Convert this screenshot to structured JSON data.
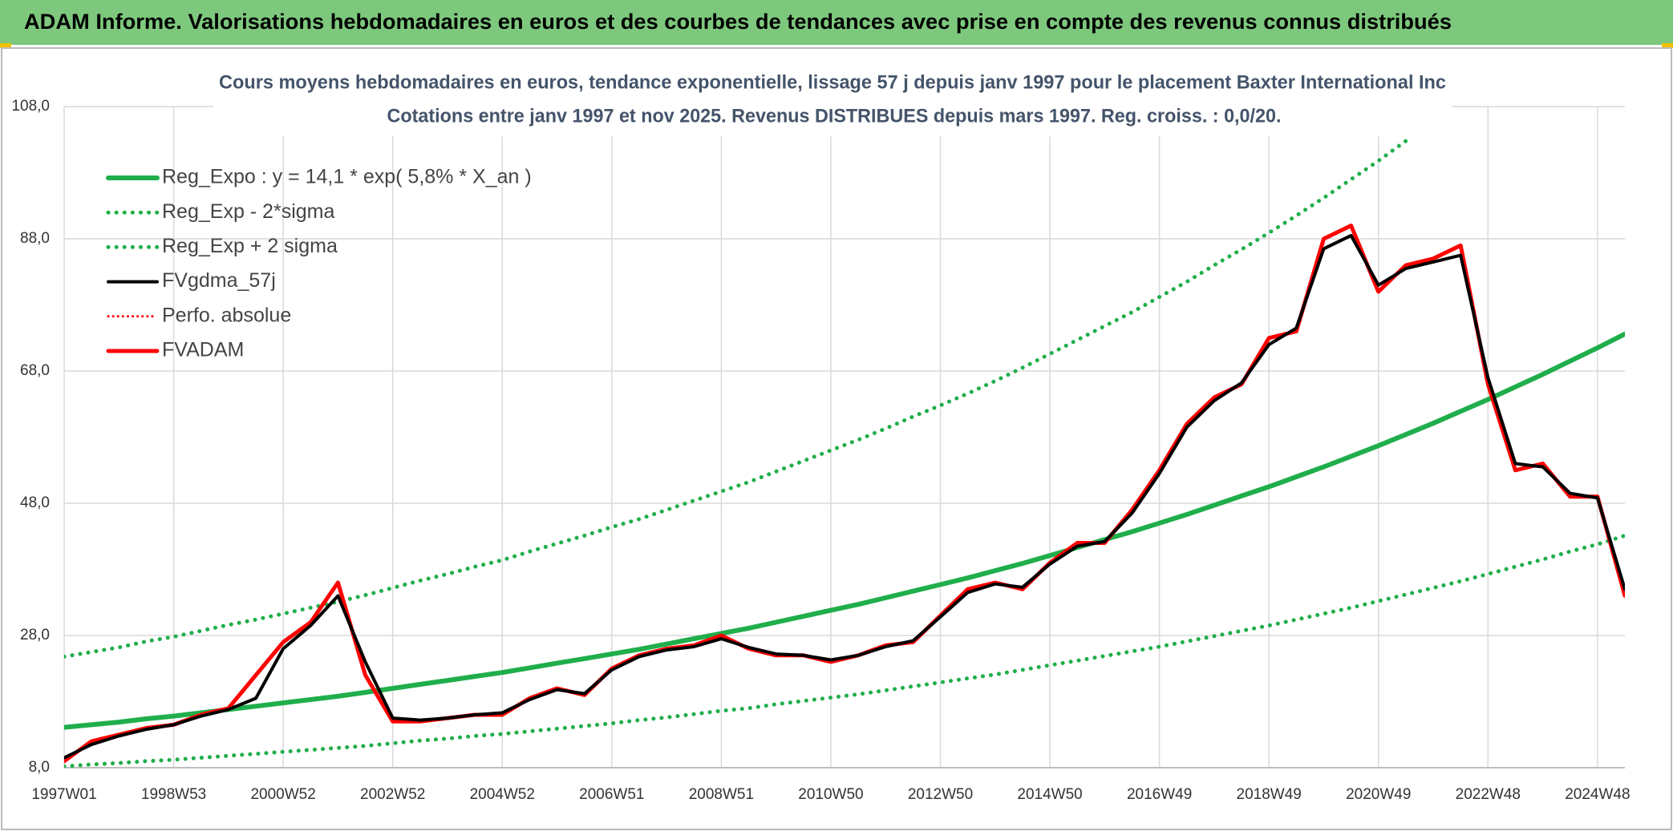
{
  "chart_data": {
    "type": "line",
    "banner": "ADAM Informe. Valorisations hebdomadaires en euros et des courbes de tendances avec prise en compte des revenus connus distribués",
    "title": "Cours moyens hebdomadaires en euros, tendance exponentielle, lissage 57 j depuis janv 1997 pour le placement Baxter International Inc",
    "subtitle": "Cotations entre janv 1997 et nov 2025. Revenus DISTRIBUES depuis mars 1997. Reg. croiss. : 0,0/20.",
    "categories": [
      "1997W01",
      null,
      null,
      null,
      "1998W53",
      null,
      null,
      null,
      "2000W52",
      null,
      null,
      null,
      "2002W52",
      null,
      null,
      null,
      "2004W52",
      null,
      null,
      null,
      "2006W51",
      null,
      null,
      null,
      "2008W51",
      null,
      null,
      null,
      "2010W50",
      null,
      null,
      null,
      "2012W50",
      null,
      null,
      null,
      "2014W50",
      null,
      null,
      null,
      "2016W49",
      null,
      null,
      null,
      "2018W49",
      null,
      null,
      null,
      "2020W49",
      null,
      null,
      null,
      "2022W48",
      null,
      null,
      null,
      "2024W48",
      null
    ],
    "ylim": [
      8,
      108
    ],
    "yticks": [
      {
        "value": 8,
        "label": "8,0"
      },
      {
        "value": 28,
        "label": "28,0"
      },
      {
        "value": 48,
        "label": "48,0"
      },
      {
        "value": 68,
        "label": "68,0"
      },
      {
        "value": 88,
        "label": "88,0"
      },
      {
        "value": 108,
        "label": "108,0"
      }
    ],
    "grid": true,
    "legend": "top-left",
    "series": [
      {
        "name": "Reg_Expo : y = 14,1 * exp( 5,8% *  X_an )",
        "color": "#1fae4b",
        "style": "solid",
        "width": 6,
        "values": [
          14.1,
          14.5,
          14.9,
          15.4,
          15.8,
          16.3,
          16.8,
          17.3,
          17.8,
          18.3,
          18.8,
          19.4,
          20.0,
          20.6,
          21.2,
          21.8,
          22.4,
          23.1,
          23.8,
          24.5,
          25.2,
          25.9,
          26.7,
          27.5,
          28.3,
          29.1,
          30.0,
          30.9,
          31.8,
          32.7,
          33.7,
          34.7,
          35.7,
          36.7,
          37.8,
          38.9,
          40.1,
          41.3,
          42.5,
          43.7,
          45.0,
          46.3,
          47.7,
          49.1,
          50.5,
          52.0,
          53.5,
          55.1,
          56.7,
          58.4,
          60.1,
          61.9,
          63.7,
          65.6,
          67.5,
          69.5,
          71.5,
          73.6
        ]
      },
      {
        "name": "Reg_Exp - 2*sigma",
        "color": "#1fae4b",
        "style": "dotted",
        "width": 5,
        "values": [
          8.2,
          8.5,
          8.7,
          9.0,
          9.2,
          9.5,
          9.8,
          10.1,
          10.4,
          10.7,
          11.0,
          11.3,
          11.7,
          12.1,
          12.4,
          12.8,
          13.1,
          13.5,
          13.9,
          14.3,
          14.7,
          15.2,
          15.6,
          16.1,
          16.6,
          17.0,
          17.6,
          18.1,
          18.6,
          19.1,
          19.7,
          20.3,
          20.9,
          21.5,
          22.1,
          22.8,
          23.5,
          24.2,
          24.9,
          25.6,
          26.3,
          27.1,
          27.9,
          28.7,
          29.5,
          30.4,
          31.3,
          32.2,
          33.2,
          34.2,
          35.2,
          36.2,
          37.3,
          38.4,
          39.5,
          40.7,
          41.8,
          43.1
        ]
      },
      {
        "name": "Reg_Exp + 2 sigma",
        "color": "#1fae4b",
        "style": "dotted",
        "width": 5,
        "values": [
          24.8,
          25.5,
          26.2,
          27.1,
          27.8,
          28.7,
          29.6,
          30.4,
          31.3,
          32.2,
          33.1,
          34.1,
          35.2,
          36.3,
          37.3,
          38.4,
          39.4,
          40.7,
          41.9,
          43.1,
          44.4,
          45.6,
          47.0,
          48.4,
          49.8,
          51.2,
          52.8,
          54.4,
          56.0,
          57.6,
          59.3,
          61.1,
          62.8,
          64.6,
          66.5,
          68.5,
          70.6,
          72.7,
          74.8,
          76.9,
          79.2,
          81.5,
          84.0,
          86.4,
          88.9,
          91.5,
          94.2,
          97.0,
          99.8,
          102.8,
          null,
          null,
          null,
          null,
          null,
          null,
          null,
          null
        ]
      },
      {
        "name": "FVgdma_57j",
        "color": "#000000",
        "style": "solid",
        "width": 4,
        "values": [
          9.5,
          11.5,
          12.8,
          13.8,
          14.5,
          15.8,
          16.8,
          18.5,
          26.0,
          29.5,
          34.0,
          24.0,
          15.5,
          15.2,
          15.5,
          16.0,
          16.3,
          18.3,
          19.8,
          19.2,
          22.8,
          24.8,
          25.8,
          26.3,
          27.5,
          26.2,
          25.2,
          25.0,
          24.3,
          25.0,
          26.3,
          27.2,
          30.8,
          34.5,
          35.8,
          35.3,
          38.8,
          41.5,
          42.2,
          46.5,
          52.5,
          59.5,
          63.5,
          66.2,
          72.0,
          74.5,
          86.5,
          88.5,
          81.0,
          83.5,
          84.5,
          85.5,
          67.0,
          54.0,
          53.5,
          49.5,
          48.8,
          35.0
        ]
      },
      {
        "name": "Perfo. absolue",
        "color": "#ff0000",
        "style": "dotted",
        "width": 3,
        "values": [
          null,
          null,
          null,
          null,
          null,
          null,
          null,
          null,
          null,
          null,
          null,
          null,
          null,
          null,
          null,
          null,
          null,
          null,
          null,
          null,
          null,
          null,
          null,
          null,
          null,
          null,
          null,
          null,
          null,
          null,
          null,
          null,
          null,
          null,
          null,
          null,
          null,
          null,
          null,
          null,
          null,
          null,
          null,
          null,
          null,
          null,
          null,
          null,
          null,
          null,
          null,
          null,
          null,
          null,
          null,
          null,
          null,
          null
        ]
      },
      {
        "name": "FVADAM",
        "color": "#ff0000",
        "style": "solid",
        "width": 5,
        "values": [
          9,
          12,
          13,
          14,
          14.5,
          16,
          17,
          22,
          27,
          30,
          36,
          22,
          15,
          15,
          15.5,
          16,
          16,
          18.5,
          20,
          19,
          23,
          25,
          26,
          26.5,
          28,
          26,
          25,
          25,
          24,
          25,
          26.5,
          27,
          31,
          35,
          36,
          35,
          39,
          42,
          42,
          47,
          53,
          60,
          64,
          66,
          73,
          74,
          88,
          90,
          80,
          84,
          85,
          87,
          66,
          53,
          54,
          49,
          49,
          34
        ]
      }
    ]
  }
}
